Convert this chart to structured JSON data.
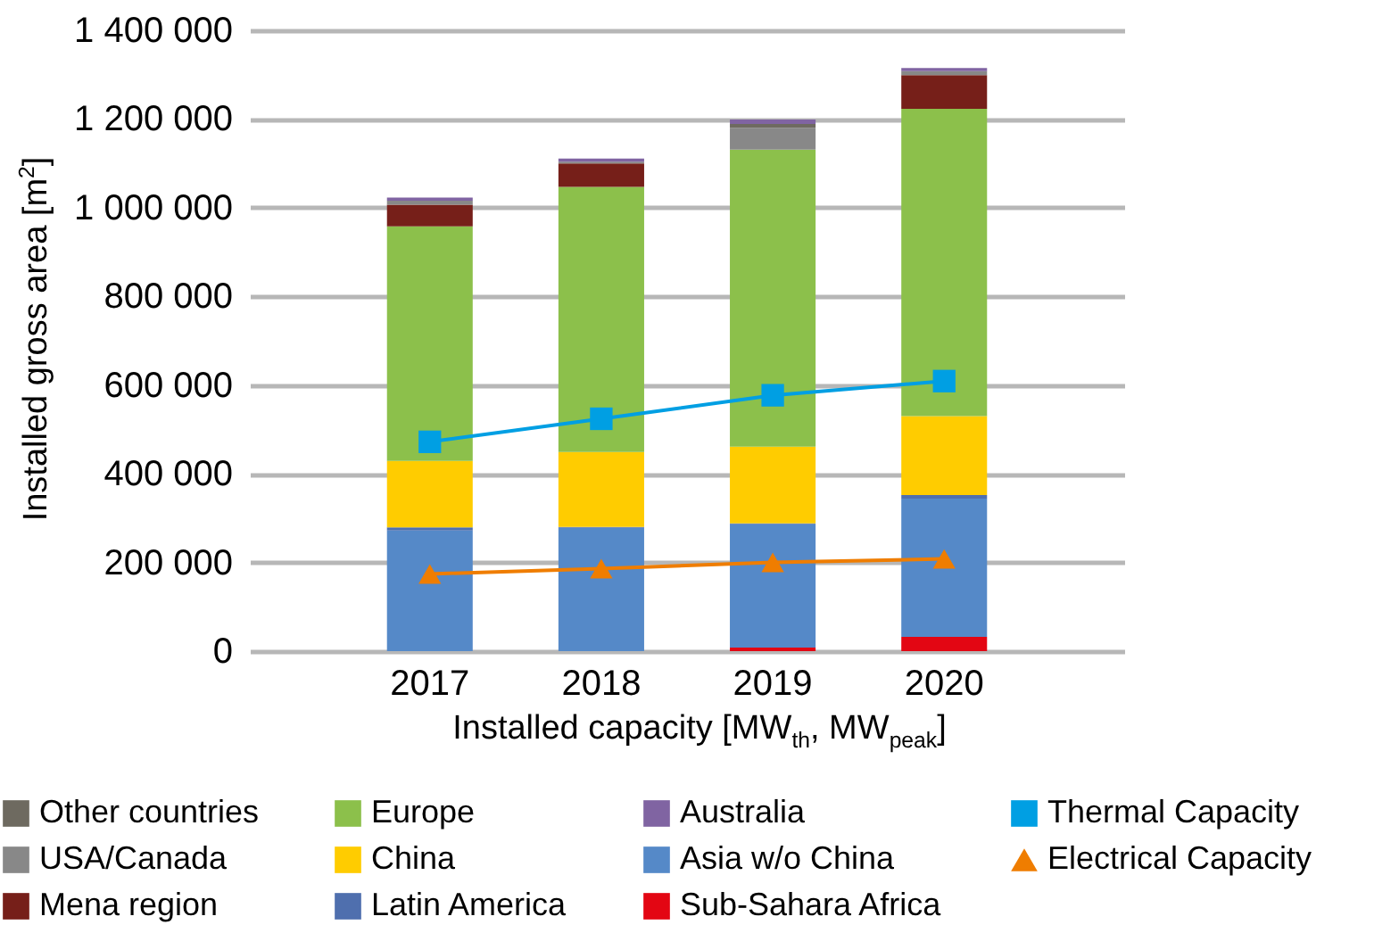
{
  "chart_data": {
    "type": "bar",
    "stacked": true,
    "xlabel": "Installed capacity [MW$_{th}$, MW$_{peak}$]",
    "ylabel": "Installed gross area [m$^{2}$]",
    "categories": [
      "2017",
      "2018",
      "2019",
      "2020"
    ],
    "ylim": [
      0,
      1400000
    ],
    "yticks": [
      {
        "value": 0,
        "label": "0"
      },
      {
        "value": 200000,
        "label": "200 000"
      },
      {
        "value": 400000,
        "label": "400 000"
      },
      {
        "value": 600000,
        "label": "600 000"
      },
      {
        "value": 800000,
        "label": "800 000"
      },
      {
        "value": 1000000,
        "label": "1 000 000"
      },
      {
        "value": 1200000,
        "label": "1 200 000"
      },
      {
        "value": 1400000,
        "label": "1 400 000"
      }
    ],
    "grid": "y",
    "legend": "bottom",
    "series": [
      {
        "name": "Sub-Sahara Africa",
        "color": "#e30613",
        "values": [
          0,
          0,
          8000,
          32000
        ]
      },
      {
        "name": "Asia w/o China",
        "color": "#5589c8",
        "values": [
          272000,
          278000,
          278000,
          312000
        ]
      },
      {
        "name": "Latin America",
        "color": "#4f6fae",
        "values": [
          7000,
          2000,
          2000,
          8000
        ]
      },
      {
        "name": "China",
        "color": "#ffcc00",
        "values": [
          150000,
          169000,
          173000,
          178000
        ]
      },
      {
        "name": "Europe",
        "color": "#8cc04b",
        "values": [
          529000,
          598000,
          670000,
          693000
        ]
      },
      {
        "name": "Mena region",
        "color": "#761f19",
        "values": [
          49000,
          53000,
          0,
          76000
        ]
      },
      {
        "name": "USA/Canada",
        "color": "#888888",
        "values": [
          9000,
          4000,
          49000,
          9000
        ]
      },
      {
        "name": "Other countries",
        "color": "#6e6a60",
        "values": [
          0,
          0,
          9000,
          0
        ]
      },
      {
        "name": "Australia",
        "color": "#8064a2",
        "values": [
          7000,
          7000,
          10000,
          7000
        ]
      },
      {
        "name": "Thermal Capacity",
        "type": "line",
        "color": "#009fe3",
        "marker": "square",
        "values": [
          472000,
          524000,
          577000,
          609000
        ]
      },
      {
        "name": "Electrical Capacity",
        "type": "line",
        "color": "#ef7d00",
        "marker": "triangle",
        "values": [
          174000,
          186000,
          200000,
          208000
        ]
      }
    ]
  }
}
